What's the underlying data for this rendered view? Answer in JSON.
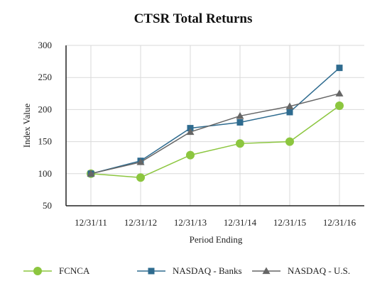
{
  "chart_data": {
    "type": "line",
    "title": "CTSR Total Returns",
    "xlabel": "Period Ending",
    "ylabel": "Index Value",
    "categories": [
      "12/31/11",
      "12/31/12",
      "12/31/13",
      "12/31/14",
      "12/31/15",
      "12/31/16"
    ],
    "ylim": [
      50,
      300
    ],
    "yticks": [
      50,
      100,
      150,
      200,
      250,
      300
    ],
    "grid": true,
    "legend_position": "bottom",
    "series": [
      {
        "name": "FCNCA",
        "values": [
          100,
          94,
          129,
          147,
          150,
          206
        ],
        "color": "#8cc63f",
        "marker": "circle"
      },
      {
        "name": "NASDAQ - Banks",
        "values": [
          100,
          120,
          171,
          180,
          196,
          265
        ],
        "color": "#2e6b8f",
        "marker": "square"
      },
      {
        "name": "NASDAQ - U.S.",
        "values": [
          100,
          118,
          165,
          190,
          205,
          225
        ],
        "color": "#666666",
        "marker": "triangle"
      }
    ]
  }
}
